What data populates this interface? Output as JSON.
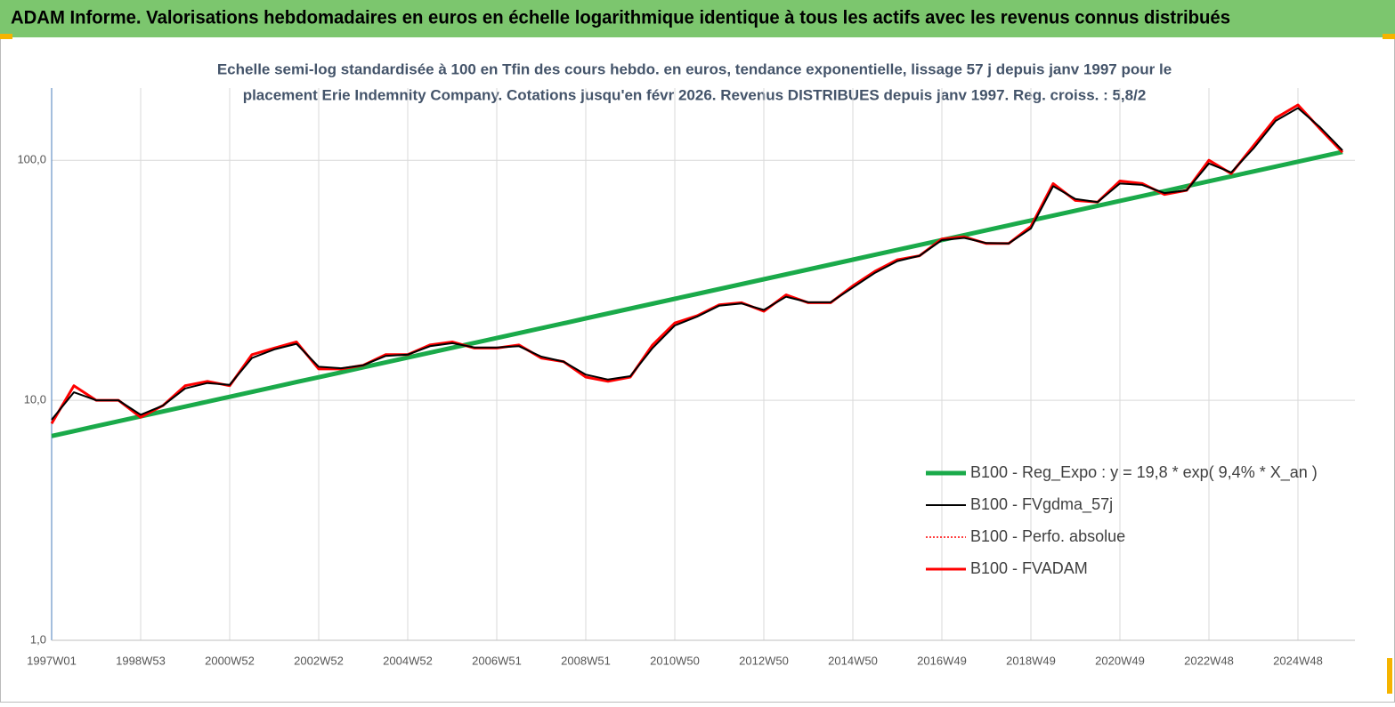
{
  "chart_data": {
    "type": "line",
    "title": "ADAM Informe. Valorisations hebdomadaires en euros en échelle logarithmique identique à tous les actifs avec les revenus connus distribués",
    "subtitle": [
      "Echelle semi-log standardisée à 100 en Tfin des cours hebdo. en euros, tendance exponentielle, lissage 57 j depuis janv 1997 pour le",
      "placement Erie Indemnity Company. Cotations jusqu'en févr 2026. Revenus DISTRIBUES depuis janv 1997. Reg. croiss. : 5,8/2"
    ],
    "log_y": true,
    "grid": true,
    "ylim": [
      1,
      200
    ],
    "yticks": [
      {
        "value": 1,
        "label": "1,0"
      },
      {
        "value": 10,
        "label": "10,0"
      },
      {
        "value": 100,
        "label": "100,0"
      }
    ],
    "categories": [
      "1997W01",
      null,
      null,
      null,
      "1998W53",
      null,
      null,
      null,
      "2000W52",
      null,
      null,
      null,
      "2002W52",
      null,
      null,
      null,
      "2004W52",
      null,
      null,
      null,
      "2006W51",
      null,
      null,
      null,
      "2008W51",
      null,
      null,
      null,
      "2010W50",
      null,
      null,
      null,
      "2012W50",
      null,
      null,
      null,
      "2014W50",
      null,
      null,
      null,
      "2016W49",
      null,
      null,
      null,
      "2018W49",
      null,
      null,
      null,
      "2020W49",
      null,
      null,
      null,
      "2022W48",
      null,
      null,
      null,
      "2024W48",
      null,
      null
    ],
    "series": [
      {
        "name": "B100 - Reg_Expo : y = 19,8 *  exp( 9,4% *  X_an )",
        "color": "#1aaa4a",
        "style": "solid",
        "width": 5,
        "values": [
          7.1,
          7.44,
          7.8,
          8.18,
          8.57,
          8.98,
          9.41,
          9.87,
          10.34,
          10.84,
          11.36,
          11.91,
          12.48,
          13.08,
          13.71,
          14.37,
          15.06,
          15.79,
          16.55,
          17.34,
          18.18,
          19.05,
          19.97,
          20.93,
          21.94,
          22.99,
          24.1,
          25.26,
          26.47,
          27.75,
          29.08,
          30.48,
          31.95,
          33.48,
          35.1,
          36.78,
          38.55,
          40.41,
          42.35,
          44.39,
          46.53,
          48.76,
          51.11,
          53.57,
          56.14,
          58.84,
          61.68,
          64.64,
          67.75,
          71.01,
          74.43,
          78.01,
          81.76,
          85.69,
          89.82,
          94.14,
          98.66,
          103.4,
          108.4
        ]
      },
      {
        "name": "B100 - FVgdma_57j",
        "color": "#000000",
        "style": "solid",
        "width": 2,
        "values": [
          8.3,
          10.8,
          10,
          10,
          8.7,
          9.5,
          11.2,
          11.8,
          11.6,
          15,
          16.3,
          17.2,
          13.8,
          13.6,
          14,
          15.3,
          15.5,
          16.8,
          17.3,
          16.6,
          16.6,
          16.8,
          15.2,
          14.5,
          12.8,
          12.2,
          12.6,
          16.5,
          20.5,
          22.3,
          24.8,
          25.3,
          23.8,
          27,
          25.6,
          25.6,
          29.5,
          34,
          38,
          40,
          46.5,
          47.5,
          45.2,
          45,
          52,
          78,
          69,
          67,
          80,
          79,
          73,
          75,
          97,
          89,
          112,
          146,
          165,
          137,
          110
        ]
      },
      {
        "name": "B100 - Perfo. absolue",
        "color": "#ff0000",
        "style": "dotted",
        "width": 1.5,
        "values": [
          8.0,
          11.5,
          10,
          10,
          8.5,
          9.5,
          11.5,
          12,
          11.5,
          15.5,
          16.5,
          17.5,
          13.5,
          13.5,
          14,
          15.5,
          15.5,
          17,
          17.5,
          16.5,
          16.5,
          17,
          15,
          14.5,
          12.5,
          12,
          12.5,
          17,
          21,
          22.5,
          25,
          25.5,
          23.5,
          27.5,
          25.5,
          25.5,
          30,
          34.5,
          38.5,
          40,
          47,
          48,
          45,
          45,
          53,
          80,
          68,
          67,
          82,
          80,
          72,
          75,
          100,
          88,
          115,
          150,
          170,
          135,
          108
        ]
      },
      {
        "name": "B100 - FVADAM",
        "color": "#ff0000",
        "style": "solid",
        "width": 3,
        "values": [
          8.0,
          11.5,
          10,
          10,
          8.5,
          9.5,
          11.5,
          12,
          11.5,
          15.5,
          16.5,
          17.5,
          13.5,
          13.5,
          14,
          15.5,
          15.5,
          17,
          17.5,
          16.5,
          16.5,
          17,
          15,
          14.5,
          12.5,
          12,
          12.5,
          17,
          21,
          22.5,
          25,
          25.5,
          23.5,
          27.5,
          25.5,
          25.5,
          30,
          34.5,
          38.5,
          40,
          47,
          48,
          45,
          45,
          53,
          80,
          68,
          67,
          82,
          80,
          72,
          75,
          100,
          88,
          115,
          150,
          170,
          135,
          108
        ]
      }
    ]
  }
}
